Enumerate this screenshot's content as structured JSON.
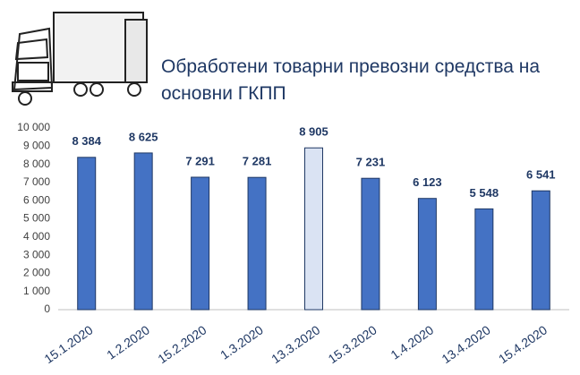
{
  "chart_data": {
    "type": "bar",
    "title": "Обработени товарни превозни средства на основни ГКПП",
    "categories": [
      "15.1.2020",
      "1.2.2020",
      "15.2.2020",
      "1.3.2020",
      "13.3.2020",
      "15.3.2020",
      "1.4.2020",
      "13.4.2020",
      "15.4.2020"
    ],
    "values": [
      8384,
      8625,
      7291,
      7281,
      8905,
      7231,
      6123,
      5548,
      6541
    ],
    "value_labels": [
      "8 384",
      "8 625",
      "7 291",
      "7 281",
      "8 905",
      "7 231",
      "6 123",
      "5 548",
      "6 541"
    ],
    "colors": [
      "#4472c4",
      "#4472c4",
      "#4472c4",
      "#4472c4",
      "#dae3f3",
      "#4472c4",
      "#4472c4",
      "#4472c4",
      "#4472c4"
    ],
    "edge_color": "#1f3864",
    "ylim": [
      0,
      10000
    ],
    "yticks": [
      0,
      {
        "value": 1000,
        "label": "1 000"
      },
      {
        "value": 2000,
        "label": "2 000"
      },
      {
        "value": 3000,
        "label": "3 000"
      },
      {
        "value": 4000,
        "label": "4 000"
      },
      {
        "value": 5000,
        "label": "5 000"
      },
      {
        "value": 6000,
        "label": "6 000"
      },
      {
        "value": 7000,
        "label": "7 000"
      },
      {
        "value": 8000,
        "label": "8 000"
      },
      {
        "value": 9000,
        "label": "9 000"
      },
      {
        "value": 10000,
        "label": "10 000"
      }
    ],
    "grid": false
  }
}
